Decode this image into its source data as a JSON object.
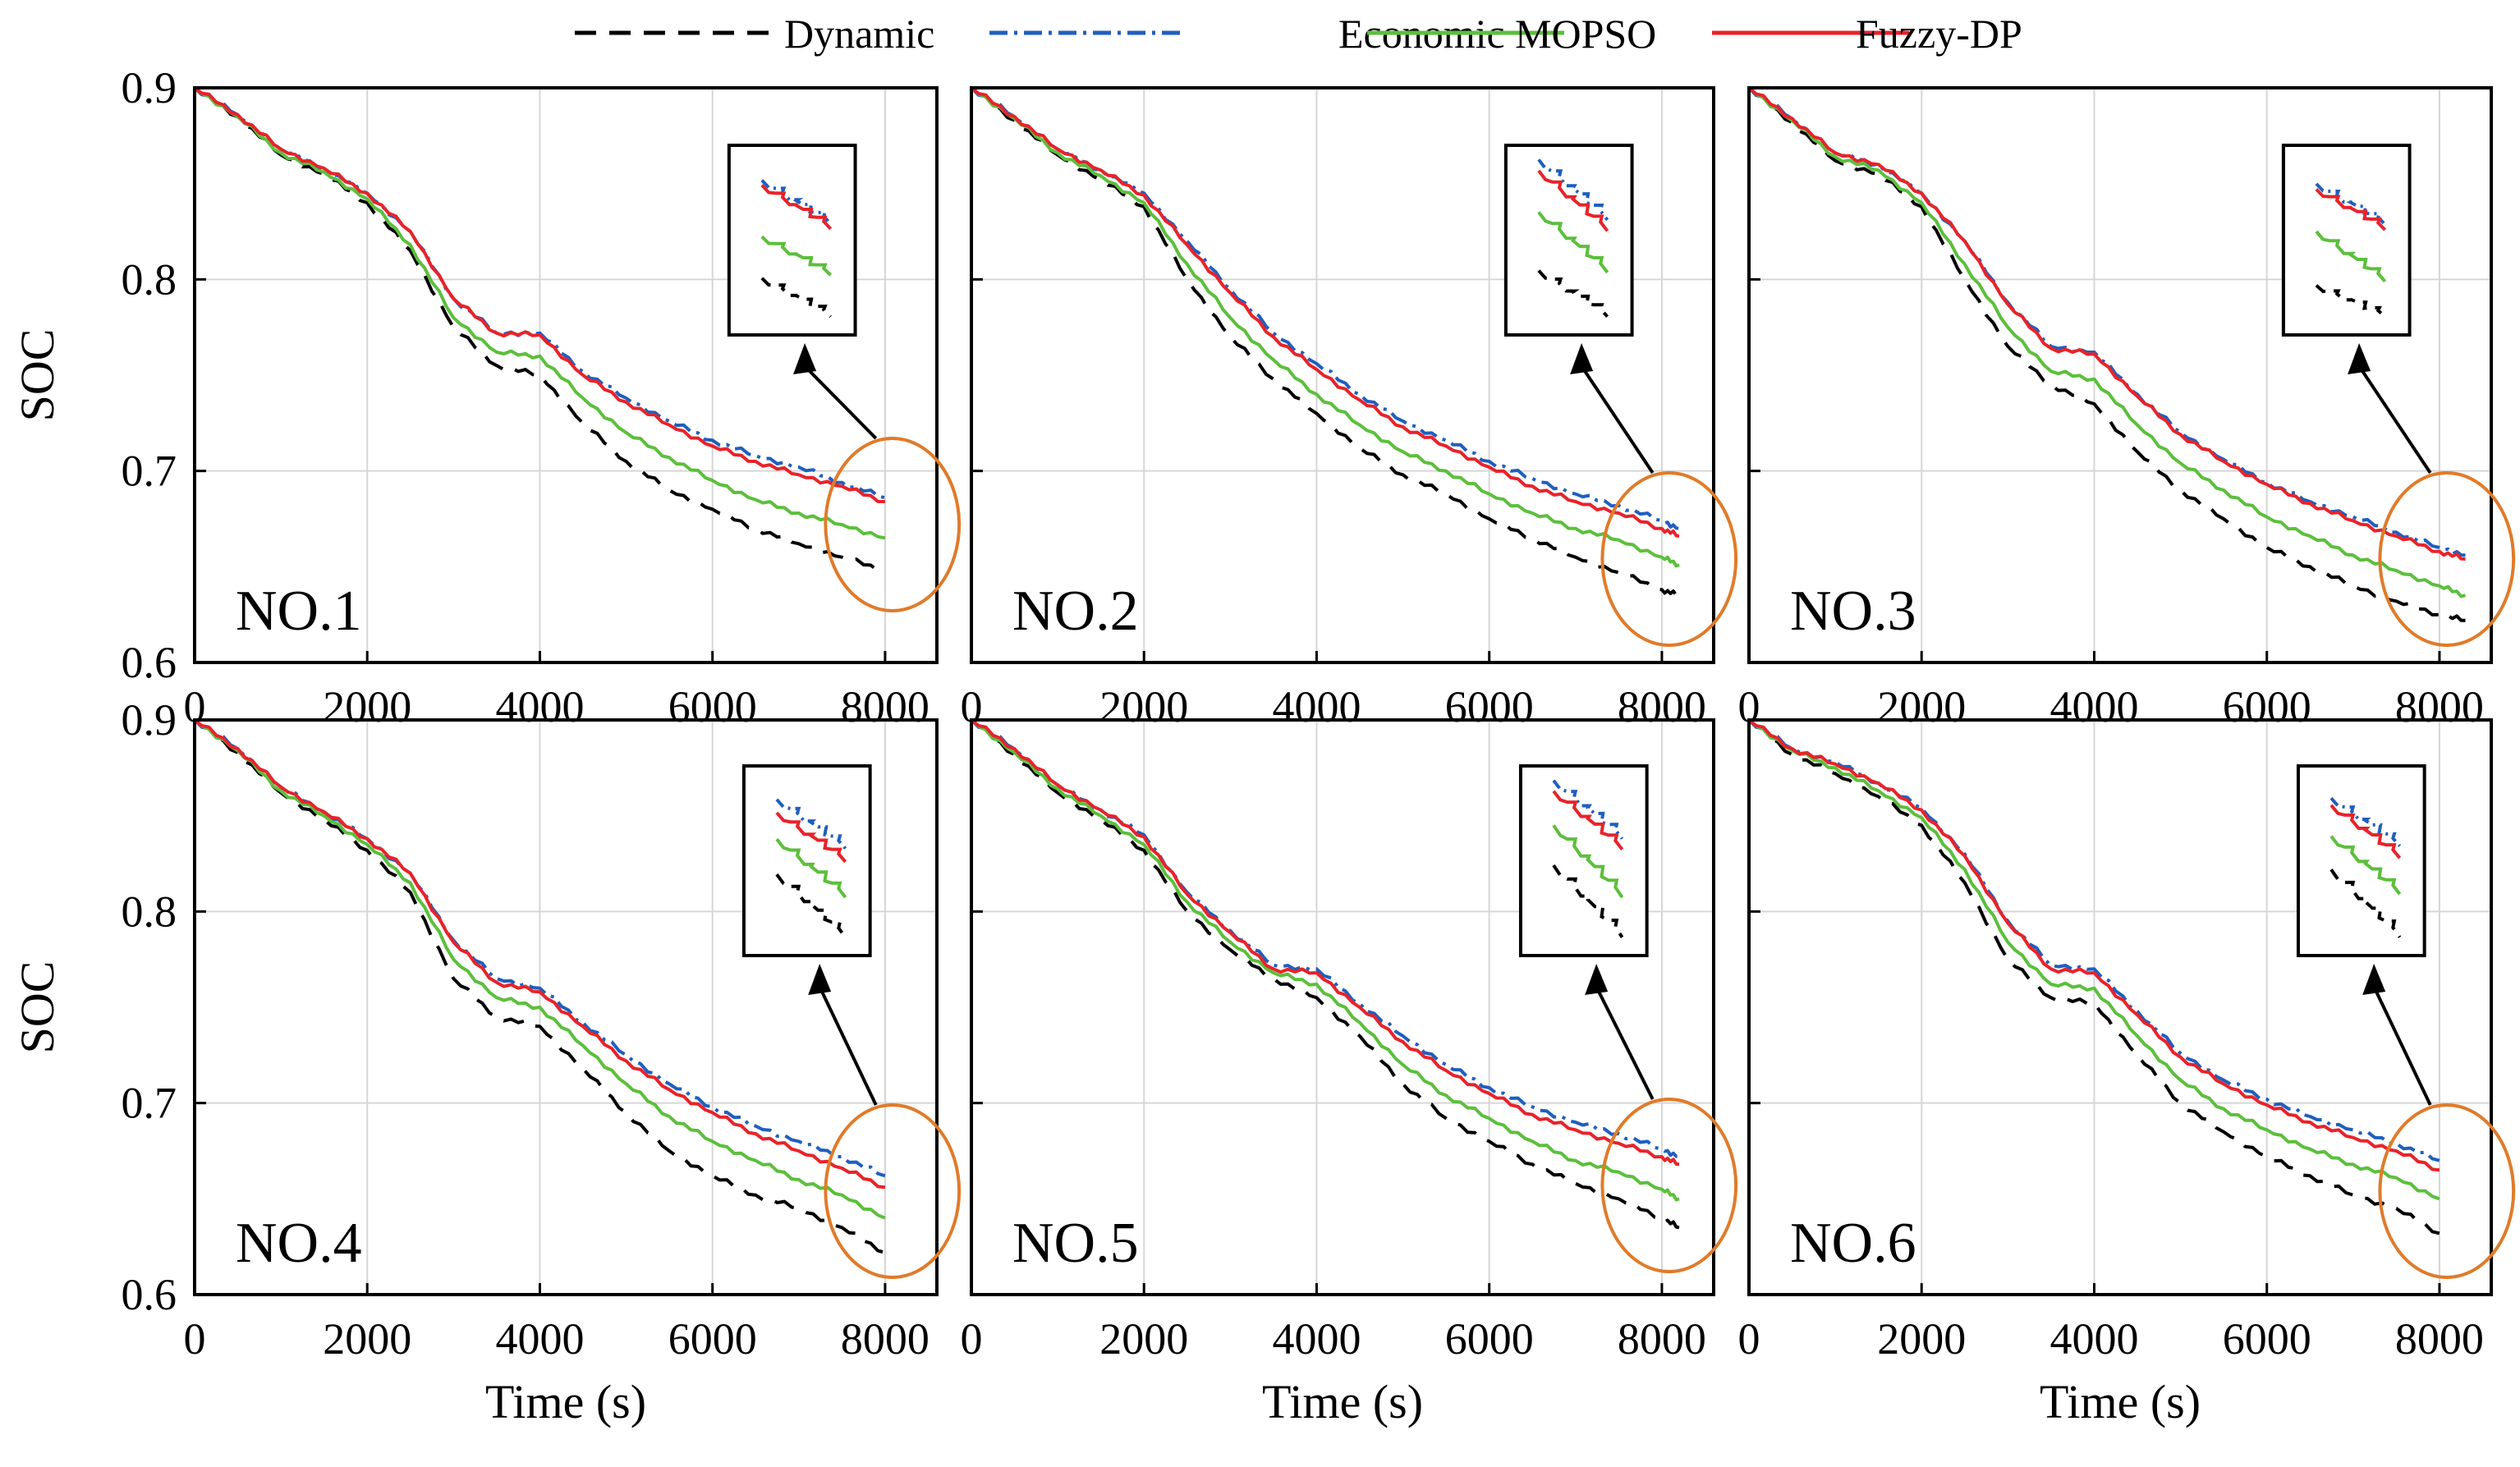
{
  "legend": [
    {
      "key": "dynamic",
      "label": "Dynamic",
      "color": "#000000",
      "dash": "26 16"
    },
    {
      "key": "economic",
      "label": "Economic",
      "color": "#1f5fbf",
      "dash": "22 8 4 8"
    },
    {
      "key": "mopso",
      "label": "MOPSO",
      "color": "#5cbf3c",
      "dash": ""
    },
    {
      "key": "fuzzy",
      "label": "Fuzzy-DP",
      "color": "#e8232a",
      "dash": ""
    }
  ],
  "colors": {
    "axes": "#000000",
    "grid": "#d6d6d6",
    "highlight_circle": "#e07b2a",
    "arrow": "#000000"
  },
  "chart_data": [
    {
      "type": "line",
      "panel": "NO.1",
      "xlabel": "",
      "ylabel": "SOC",
      "xlim": [
        0,
        8600
      ],
      "ylim": [
        0.6,
        0.9
      ],
      "xticks": [
        0,
        2000,
        4000,
        6000,
        8000
      ],
      "yticks": [
        0.6,
        0.7,
        0.8,
        0.9
      ],
      "grid": true,
      "x": [
        0,
        500,
        1000,
        1500,
        2000,
        2500,
        3000,
        3500,
        4000,
        4500,
        5000,
        5500,
        6000,
        6500,
        7000,
        7500,
        8000
      ],
      "series": [
        {
          "name": "Dynamic",
          "values": [
            0.9,
            0.885,
            0.865,
            0.855,
            0.84,
            0.815,
            0.775,
            0.755,
            0.75,
            0.725,
            0.705,
            0.69,
            0.68,
            0.67,
            0.662,
            0.655,
            0.648
          ]
        },
        {
          "name": "Economic",
          "values": [
            0.9,
            0.886,
            0.868,
            0.858,
            0.845,
            0.825,
            0.79,
            0.772,
            0.772,
            0.752,
            0.738,
            0.726,
            0.716,
            0.708,
            0.702,
            0.694,
            0.686
          ]
        },
        {
          "name": "MOPSO",
          "values": [
            0.9,
            0.885,
            0.866,
            0.856,
            0.842,
            0.818,
            0.78,
            0.762,
            0.76,
            0.738,
            0.72,
            0.707,
            0.695,
            0.685,
            0.678,
            0.672,
            0.665
          ]
        },
        {
          "name": "Fuzzy-DP",
          "values": [
            0.9,
            0.886,
            0.868,
            0.858,
            0.845,
            0.825,
            0.79,
            0.772,
            0.771,
            0.75,
            0.736,
            0.724,
            0.713,
            0.705,
            0.698,
            0.692,
            0.684
          ]
        }
      ]
    },
    {
      "type": "line",
      "panel": "NO.2",
      "xlabel": "",
      "ylabel": "",
      "xlim": [
        0,
        8600
      ],
      "ylim": [
        0.6,
        0.9
      ],
      "xticks": [
        0,
        2000,
        4000,
        6000,
        8000
      ],
      "yticks": [
        0.6,
        0.7,
        0.8,
        0.9
      ],
      "grid": true,
      "x": [
        0,
        500,
        1000,
        1500,
        2000,
        2500,
        3000,
        3500,
        4000,
        4500,
        5000,
        5500,
        6000,
        6500,
        7000,
        7500,
        8000,
        8200
      ],
      "series": [
        {
          "name": "Dynamic",
          "values": [
            0.9,
            0.883,
            0.865,
            0.852,
            0.838,
            0.8,
            0.77,
            0.748,
            0.73,
            0.712,
            0.698,
            0.688,
            0.675,
            0.665,
            0.655,
            0.647,
            0.638,
            0.635
          ]
        },
        {
          "name": "Economic",
          "values": [
            0.9,
            0.885,
            0.868,
            0.857,
            0.845,
            0.82,
            0.795,
            0.772,
            0.756,
            0.74,
            0.726,
            0.716,
            0.705,
            0.696,
            0.688,
            0.682,
            0.674,
            0.67
          ]
        },
        {
          "name": "MOPSO",
          "values": [
            0.9,
            0.884,
            0.866,
            0.854,
            0.84,
            0.808,
            0.78,
            0.758,
            0.74,
            0.724,
            0.71,
            0.7,
            0.688,
            0.678,
            0.67,
            0.664,
            0.655,
            0.651
          ]
        },
        {
          "name": "Fuzzy-DP",
          "values": [
            0.9,
            0.885,
            0.868,
            0.857,
            0.844,
            0.818,
            0.793,
            0.77,
            0.753,
            0.737,
            0.723,
            0.713,
            0.702,
            0.692,
            0.684,
            0.678,
            0.67,
            0.666
          ]
        }
      ]
    },
    {
      "type": "line",
      "panel": "NO.3",
      "xlabel": "",
      "ylabel": "",
      "xlim": [
        0,
        8600
      ],
      "ylim": [
        0.6,
        0.9
      ],
      "xticks": [
        0,
        2000,
        4000,
        6000,
        8000
      ],
      "yticks": [
        0.6,
        0.7,
        0.8,
        0.9
      ],
      "grid": true,
      "x": [
        0,
        500,
        1000,
        1500,
        2000,
        2500,
        3000,
        3500,
        4000,
        4500,
        5000,
        5500,
        6000,
        6500,
        7000,
        7500,
        8000,
        8300
      ],
      "series": [
        {
          "name": "Dynamic",
          "values": [
            0.9,
            0.882,
            0.862,
            0.855,
            0.838,
            0.8,
            0.765,
            0.745,
            0.735,
            0.71,
            0.69,
            0.675,
            0.66,
            0.65,
            0.64,
            0.632,
            0.625,
            0.622
          ]
        },
        {
          "name": "Economic",
          "values": [
            0.9,
            0.884,
            0.866,
            0.86,
            0.845,
            0.82,
            0.788,
            0.765,
            0.762,
            0.74,
            0.72,
            0.706,
            0.694,
            0.684,
            0.676,
            0.668,
            0.66,
            0.656
          ]
        },
        {
          "name": "MOPSO",
          "values": [
            0.9,
            0.883,
            0.864,
            0.857,
            0.84,
            0.808,
            0.775,
            0.752,
            0.748,
            0.724,
            0.704,
            0.69,
            0.676,
            0.666,
            0.656,
            0.648,
            0.64,
            0.635
          ]
        },
        {
          "name": "Fuzzy-DP",
          "values": [
            0.9,
            0.884,
            0.866,
            0.86,
            0.845,
            0.82,
            0.787,
            0.764,
            0.761,
            0.739,
            0.719,
            0.705,
            0.693,
            0.683,
            0.674,
            0.666,
            0.658,
            0.654
          ]
        }
      ]
    },
    {
      "type": "line",
      "panel": "NO.4",
      "xlabel": "Time (s)",
      "ylabel": "SOC",
      "xlim": [
        0,
        8600
      ],
      "ylim": [
        0.6,
        0.9
      ],
      "xticks": [
        0,
        2000,
        4000,
        6000,
        8000
      ],
      "yticks": [
        0.6,
        0.7,
        0.8,
        0.9
      ],
      "grid": true,
      "x": [
        0,
        500,
        1000,
        1500,
        2000,
        2500,
        3000,
        3500,
        4000,
        4500,
        5000,
        5500,
        6000,
        6500,
        7000,
        7500,
        8000
      ],
      "series": [
        {
          "name": "Dynamic",
          "values": [
            0.9,
            0.883,
            0.862,
            0.848,
            0.832,
            0.81,
            0.765,
            0.745,
            0.74,
            0.718,
            0.695,
            0.675,
            0.662,
            0.652,
            0.645,
            0.635,
            0.622
          ]
        },
        {
          "name": "Economic",
          "values": [
            0.9,
            0.885,
            0.865,
            0.852,
            0.838,
            0.82,
            0.785,
            0.765,
            0.76,
            0.742,
            0.725,
            0.71,
            0.698,
            0.688,
            0.68,
            0.672,
            0.662
          ]
        },
        {
          "name": "MOPSO",
          "values": [
            0.9,
            0.884,
            0.863,
            0.85,
            0.835,
            0.815,
            0.775,
            0.755,
            0.75,
            0.73,
            0.71,
            0.693,
            0.68,
            0.67,
            0.66,
            0.652,
            0.64
          ]
        },
        {
          "name": "Fuzzy-DP",
          "values": [
            0.9,
            0.885,
            0.865,
            0.852,
            0.838,
            0.82,
            0.784,
            0.763,
            0.758,
            0.74,
            0.722,
            0.707,
            0.695,
            0.684,
            0.675,
            0.666,
            0.656
          ]
        }
      ]
    },
    {
      "type": "line",
      "panel": "NO.5",
      "xlabel": "Time (s)",
      "ylabel": "",
      "xlim": [
        0,
        8600
      ],
      "ylim": [
        0.6,
        0.9
      ],
      "xticks": [
        0,
        2000,
        4000,
        6000,
        8000
      ],
      "yticks": [
        0.6,
        0.7,
        0.8,
        0.9
      ],
      "grid": true,
      "x": [
        0,
        500,
        1000,
        1500,
        2000,
        2500,
        3000,
        3500,
        4000,
        4500,
        5000,
        5500,
        6000,
        6500,
        7000,
        7500,
        8000,
        8200
      ],
      "series": [
        {
          "name": "Dynamic",
          "values": [
            0.9,
            0.882,
            0.862,
            0.848,
            0.832,
            0.8,
            0.78,
            0.765,
            0.755,
            0.735,
            0.71,
            0.692,
            0.68,
            0.668,
            0.658,
            0.65,
            0.64,
            0.635
          ]
        },
        {
          "name": "Economic",
          "values": [
            0.9,
            0.885,
            0.866,
            0.853,
            0.84,
            0.81,
            0.79,
            0.772,
            0.77,
            0.752,
            0.735,
            0.72,
            0.708,
            0.698,
            0.69,
            0.684,
            0.676,
            0.672
          ]
        },
        {
          "name": "MOPSO",
          "values": [
            0.9,
            0.883,
            0.864,
            0.85,
            0.835,
            0.805,
            0.784,
            0.768,
            0.762,
            0.742,
            0.72,
            0.704,
            0.692,
            0.68,
            0.67,
            0.664,
            0.655,
            0.65
          ]
        },
        {
          "name": "Fuzzy-DP",
          "values": [
            0.9,
            0.885,
            0.866,
            0.853,
            0.839,
            0.809,
            0.789,
            0.77,
            0.768,
            0.75,
            0.732,
            0.717,
            0.705,
            0.694,
            0.686,
            0.679,
            0.672,
            0.668
          ]
        }
      ]
    },
    {
      "type": "line",
      "panel": "NO.6",
      "xlabel": "Time (s)",
      "ylabel": "",
      "xlim": [
        0,
        8600
      ],
      "ylim": [
        0.6,
        0.9
      ],
      "xticks": [
        0,
        2000,
        4000,
        6000,
        8000
      ],
      "yticks": [
        0.6,
        0.7,
        0.8,
        0.9
      ],
      "grid": true,
      "x": [
        0,
        500,
        1000,
        1500,
        2000,
        2500,
        3000,
        3500,
        4000,
        4500,
        5000,
        5500,
        6000,
        6500,
        7000,
        7500,
        8000
      ],
      "series": [
        {
          "name": "Dynamic",
          "values": [
            0.9,
            0.882,
            0.872,
            0.86,
            0.845,
            0.815,
            0.775,
            0.755,
            0.752,
            0.725,
            0.7,
            0.685,
            0.672,
            0.662,
            0.652,
            0.645,
            0.632
          ]
        },
        {
          "name": "Economic",
          "values": [
            0.9,
            0.885,
            0.878,
            0.867,
            0.854,
            0.83,
            0.795,
            0.772,
            0.77,
            0.748,
            0.726,
            0.712,
            0.702,
            0.693,
            0.686,
            0.679,
            0.67
          ]
        },
        {
          "name": "MOPSO",
          "values": [
            0.9,
            0.884,
            0.875,
            0.863,
            0.849,
            0.822,
            0.784,
            0.762,
            0.76,
            0.735,
            0.712,
            0.697,
            0.686,
            0.676,
            0.668,
            0.661,
            0.65
          ]
        },
        {
          "name": "Fuzzy-DP",
          "values": [
            0.9,
            0.885,
            0.877,
            0.867,
            0.853,
            0.829,
            0.794,
            0.77,
            0.768,
            0.746,
            0.724,
            0.71,
            0.699,
            0.69,
            0.682,
            0.675,
            0.665
          ]
        }
      ]
    }
  ]
}
